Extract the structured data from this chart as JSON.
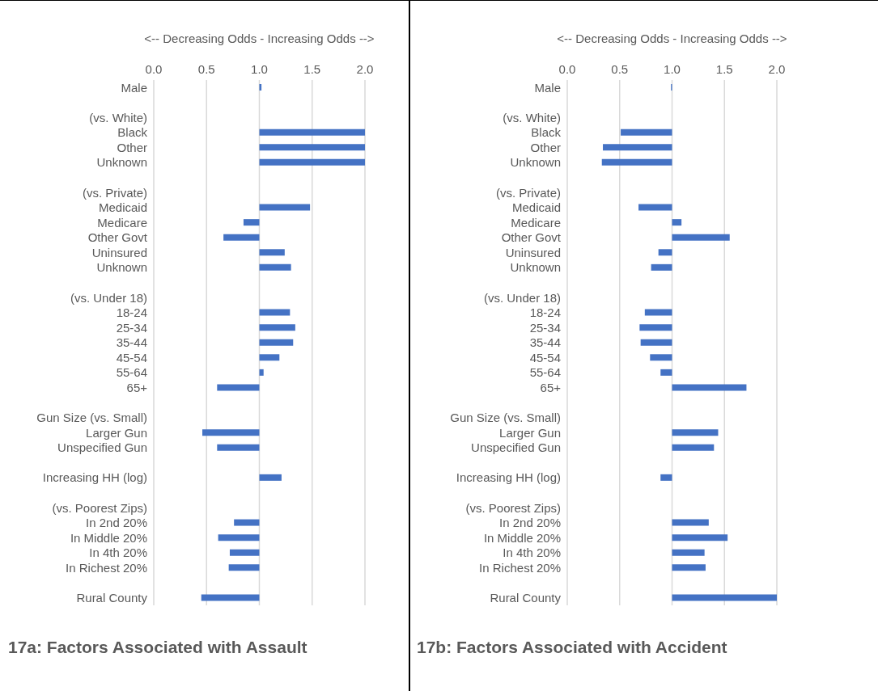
{
  "chart_data": [
    {
      "type": "bar",
      "orientation": "horizontal",
      "title": "17a: Factors Associated with Assault",
      "xlabel": "<-- Decreasing Odds - Increasing Odds -->",
      "categories": [
        "Male",
        null,
        "(vs. White)",
        "Black",
        "Other",
        "Unknown",
        null,
        "(vs. Private)",
        "Medicaid",
        "Medicare",
        "Other Govt",
        "Uninsured",
        "Unknown",
        null,
        "(vs. Under 18)",
        "18-24",
        "25-34",
        "35-44",
        "45-54",
        "55-64",
        "65+",
        null,
        "Gun Size (vs. Small)",
        "Larger Gun",
        "Unspecified Gun",
        null,
        "Increasing HH (log)",
        null,
        "(vs. Poorest Zips)",
        "In 2nd 20%",
        "In Middle 20%",
        "In 4th 20%",
        "In Richest 20%",
        null,
        "Rural County"
      ],
      "base": [
        1,
        null,
        null,
        1,
        1,
        1,
        null,
        null,
        1,
        1,
        1,
        1,
        1,
        null,
        null,
        1,
        1,
        1,
        1,
        1,
        1,
        null,
        null,
        1,
        1,
        null,
        1,
        null,
        null,
        1,
        1,
        1,
        1,
        null,
        1
      ],
      "values": [
        0.02,
        null,
        null,
        1.0,
        1.0,
        1.0,
        null,
        null,
        0.48,
        -0.15,
        -0.34,
        0.24,
        0.3,
        null,
        null,
        0.29,
        0.34,
        0.32,
        0.19,
        0.04,
        -0.4,
        null,
        null,
        -0.54,
        -0.4,
        null,
        0.21,
        null,
        null,
        -0.24,
        -0.39,
        -0.28,
        -0.29,
        null,
        -0.55
      ],
      "color": "#4472c4",
      "xlim": [
        0,
        2
      ],
      "xticks": [
        {
          "value": 0,
          "label": "0.0"
        },
        {
          "value": 0.5,
          "label": "0.5"
        },
        {
          "value": 1,
          "label": "1.0"
        },
        {
          "value": 1.5,
          "label": "1.5"
        },
        {
          "value": 2,
          "label": "2.0"
        }
      ],
      "grid": "x"
    },
    {
      "type": "bar",
      "orientation": "horizontal",
      "title": "17b: Factors Associated with Accident",
      "xlabel": "<-- Decreasing Odds - Increasing Odds -->",
      "categories": [
        "Male",
        null,
        "(vs. White)",
        "Black",
        "Other",
        "Unknown",
        null,
        "(vs. Private)",
        "Medicaid",
        "Medicare",
        "Other Govt",
        "Uninsured",
        "Unknown",
        null,
        "(vs. Under 18)",
        "18-24",
        "25-34",
        "35-44",
        "45-54",
        "55-64",
        "65+",
        null,
        "Gun Size (vs. Small)",
        "Larger Gun",
        "Unspecified Gun",
        null,
        "Increasing HH (log)",
        null,
        "(vs. Poorest Zips)",
        "In 2nd 20%",
        "In Middle 20%",
        "In 4th 20%",
        "In Richest 20%",
        null,
        "Rural County"
      ],
      "base": [
        1,
        null,
        null,
        1,
        1,
        1,
        null,
        null,
        1,
        1,
        1,
        1,
        1,
        null,
        null,
        1,
        1,
        1,
        1,
        1,
        1,
        null,
        null,
        1,
        1,
        null,
        1,
        null,
        null,
        1,
        1,
        1,
        1,
        null,
        1
      ],
      "values": [
        -0.01,
        null,
        null,
        -0.49,
        -0.66,
        -0.67,
        null,
        null,
        -0.32,
        0.09,
        0.55,
        -0.13,
        -0.2,
        null,
        null,
        -0.26,
        -0.31,
        -0.3,
        -0.21,
        -0.11,
        0.71,
        null,
        null,
        0.44,
        0.4,
        null,
        -0.11,
        null,
        null,
        0.35,
        0.53,
        0.31,
        0.32,
        null,
        1.0
      ],
      "color": "#4472c4",
      "xlim": [
        0,
        2
      ],
      "xticks": [
        {
          "value": 0,
          "label": "0.0"
        },
        {
          "value": 0.5,
          "label": "0.5"
        },
        {
          "value": 1,
          "label": "1.0"
        },
        {
          "value": 1.5,
          "label": "1.5"
        },
        {
          "value": 2,
          "label": "2.0"
        }
      ],
      "grid": "x"
    }
  ]
}
